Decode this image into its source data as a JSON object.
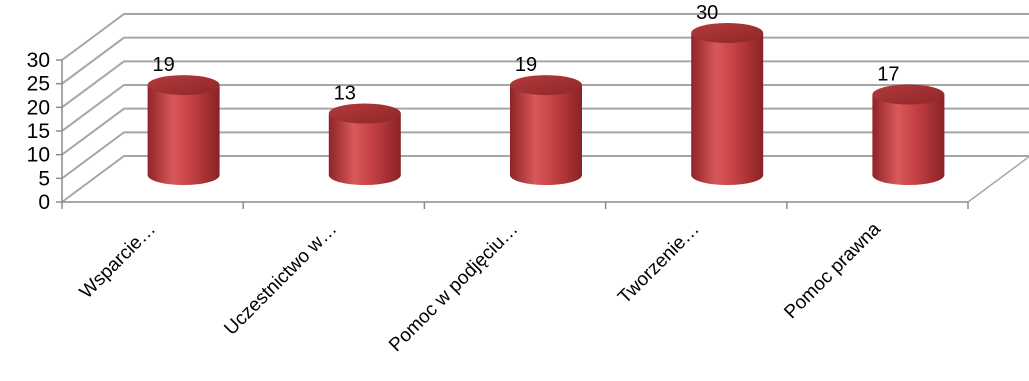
{
  "chart_data": {
    "type": "bar",
    "style": "3d-cylinder",
    "categories": [
      "Wsparcie…",
      "Uczestnictwo w…",
      "Pomoc w podjęciu…",
      "Tworzenie…",
      "Pomoc prawna"
    ],
    "values": [
      19,
      13,
      19,
      30,
      17
    ],
    "data_labels": [
      "19",
      "13",
      "19",
      "30",
      "17"
    ],
    "ylim": [
      0,
      30
    ],
    "yticks": [
      "0",
      "5",
      "10",
      "15",
      "20",
      "25",
      "30"
    ],
    "grid": true,
    "legend": "none",
    "colors": {
      "bar_body": "#c0393b",
      "bar_top": "#a83234",
      "bar_highlight": "#e06a6a",
      "gridline": "#a6a6a6",
      "axis": "#8c8c8c"
    }
  }
}
